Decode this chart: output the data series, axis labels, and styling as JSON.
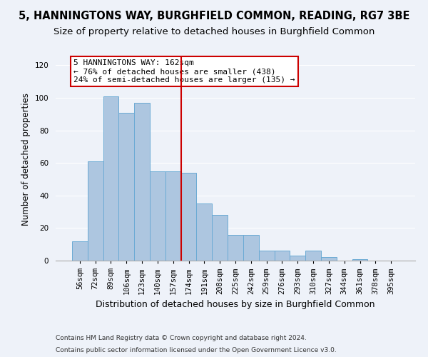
{
  "title1": "5, HANNINGTONS WAY, BURGHFIELD COMMON, READING, RG7 3BE",
  "title2": "Size of property relative to detached houses in Burghfield Common",
  "xlabel": "Distribution of detached houses by size in Burghfield Common",
  "ylabel": "Number of detached properties",
  "categories": [
    "56sqm",
    "72sqm",
    "89sqm",
    "106sqm",
    "123sqm",
    "140sqm",
    "157sqm",
    "174sqm",
    "191sqm",
    "208sqm",
    "225sqm",
    "242sqm",
    "259sqm",
    "276sqm",
    "293sqm",
    "310sqm",
    "327sqm",
    "344sqm",
    "361sqm",
    "378sqm",
    "395sqm"
  ],
  "values": [
    12,
    61,
    101,
    91,
    97,
    55,
    55,
    54,
    35,
    28,
    16,
    16,
    6,
    6,
    3,
    6,
    2,
    0,
    1,
    0,
    0
  ],
  "bar_color": "#adc6e0",
  "bar_edge_color": "#6aaad4",
  "vline_x_index": 6.5,
  "vline_color": "#cc0000",
  "annotation_text": "5 HANNINGTONS WAY: 162sqm\n← 76% of detached houses are smaller (438)\n24% of semi-detached houses are larger (135) →",
  "annotation_box_color": "#ffffff",
  "annotation_box_edge": "#cc0000",
  "ylim": [
    0,
    125
  ],
  "yticks": [
    0,
    20,
    40,
    60,
    80,
    100,
    120
  ],
  "footer1": "Contains HM Land Registry data © Crown copyright and database right 2024.",
  "footer2": "Contains public sector information licensed under the Open Government Licence v3.0.",
  "background_color": "#eef2f9",
  "grid_color": "#ffffff",
  "title1_fontsize": 10.5,
  "title2_fontsize": 9.5,
  "xlabel_fontsize": 9,
  "ylabel_fontsize": 8.5,
  "tick_fontsize": 7.5,
  "annotation_fontsize": 8,
  "footer_fontsize": 6.5
}
